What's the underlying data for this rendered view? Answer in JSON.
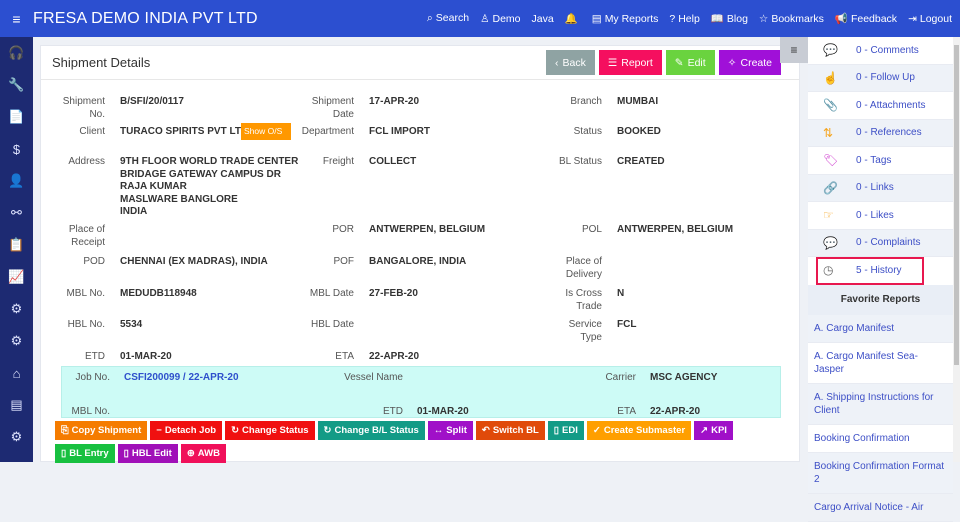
{
  "header": {
    "title": "FRESA DEMO INDIA PVT LTD",
    "nav": [
      {
        "icon": "search-icon",
        "glyph": "⌕",
        "label": "Search"
      },
      {
        "icon": "user-icon",
        "glyph": "♙",
        "label": "Demo"
      },
      {
        "icon": "",
        "glyph": "",
        "label": "Java"
      },
      {
        "icon": "bell-icon",
        "glyph": "🔔",
        "label": ""
      },
      {
        "icon": "reports-icon",
        "glyph": "▤",
        "label": "My Reports"
      },
      {
        "icon": "help-icon",
        "glyph": "?",
        "label": "Help"
      },
      {
        "icon": "book-icon",
        "glyph": "📖",
        "label": "Blog"
      },
      {
        "icon": "star-icon",
        "glyph": "☆",
        "label": "Bookmarks"
      },
      {
        "icon": "megaphone-icon",
        "glyph": "📢",
        "label": "Feedback"
      },
      {
        "icon": "logout-icon",
        "glyph": "⇥",
        "label": "Logout"
      }
    ]
  },
  "sidebar": {
    "icons": [
      "headset-icon",
      "wrench-icon",
      "document-icon",
      "dollar-icon",
      "user-icon",
      "sitemap-icon",
      "clipboard-icon",
      "chart-icon",
      "user-gear-icon",
      "gear-icon",
      "home-icon",
      "list-icon",
      "settings-icon"
    ]
  },
  "card": {
    "title": "Shipment Details",
    "buttons": [
      {
        "label": "Back",
        "color": "#8fa3a3",
        "glyph": "‹"
      },
      {
        "label": "Report",
        "color": "#f50f5f",
        "glyph": "☰"
      },
      {
        "label": "Edit",
        "color": "#6ad33f",
        "glyph": "✎"
      },
      {
        "label": "Create",
        "color": "#a010d8",
        "glyph": "✧"
      }
    ],
    "show_os": "Show O/S",
    "fields": [
      [
        {
          "l": "Shipment No.",
          "v": "B/SFI/20/0117"
        },
        {
          "l": "Shipment Date",
          "v": "17-APR-20"
        },
        {
          "l": "Branch",
          "v": "MUMBAI"
        }
      ],
      [
        {
          "l": "Client",
          "v": "TURACO SPIRITS PVT LTD"
        },
        {
          "l": "Department",
          "v": "FCL IMPORT"
        },
        {
          "l": "Status",
          "v": "BOOKED"
        }
      ],
      [
        {
          "l": "Address",
          "v": "9TH FLOOR WORLD TRADE CENTER\nBRIDAGE GATEWAY CAMPUS DR\nRAJA KUMAR\nMASLWARE BANGLORE\nINDIA"
        },
        {
          "l": "Freight",
          "v": "COLLECT"
        },
        {
          "l": "BL Status",
          "v": "CREATED"
        }
      ],
      [
        {
          "l": "Place of Receipt",
          "v": ""
        },
        {
          "l": "POR",
          "v": "ANTWERPEN, BELGIUM"
        },
        {
          "l": "POL",
          "v": "ANTWERPEN, BELGIUM"
        }
      ],
      [
        {
          "l": "POD",
          "v": "CHENNAI (EX MADRAS), INDIA"
        },
        {
          "l": "POF",
          "v": "BANGALORE, INDIA"
        },
        {
          "l": "Place of Delivery",
          "v": ""
        }
      ],
      [
        {
          "l": "MBL No.",
          "v": "MEDUDB118948"
        },
        {
          "l": "MBL Date",
          "v": "27-FEB-20"
        },
        {
          "l": "Is Cross Trade",
          "v": "N"
        }
      ],
      [
        {
          "l": "HBL No.",
          "v": "5534"
        },
        {
          "l": "HBL Date",
          "v": ""
        },
        {
          "l": "Service Type",
          "v": "FCL"
        }
      ],
      [
        {
          "l": "ETD",
          "v": "01-MAR-20"
        },
        {
          "l": "ETA",
          "v": "22-APR-20"
        },
        {
          "l": "",
          "v": ""
        }
      ]
    ],
    "job": [
      [
        {
          "l": "Job No.",
          "v": "CSFI200099 / 22-APR-20",
          "link": true
        },
        {
          "l": "Vessel Name",
          "v": ""
        },
        {
          "l": "Carrier",
          "v": "MSC AGENCY"
        }
      ],
      [
        {
          "l": "MBL No.",
          "v": ""
        },
        {
          "l": "ETD",
          "v": "01-MAR-20"
        },
        {
          "l": "ETA",
          "v": "22-APR-20"
        }
      ]
    ],
    "actions": [
      {
        "label": "Copy Shipment",
        "color": "#f57c00",
        "glyph": "⎘"
      },
      {
        "label": "Detach Job",
        "color": "#f01010",
        "glyph": "−"
      },
      {
        "label": "Change Status",
        "color": "#f01010",
        "glyph": "↻"
      },
      {
        "label": "Change B/L Status",
        "color": "#139b86",
        "glyph": "↻"
      },
      {
        "label": "Split",
        "color": "#a010c8",
        "glyph": "↔"
      },
      {
        "label": "Switch BL",
        "color": "#e04a0a",
        "glyph": "↶"
      },
      {
        "label": "EDI",
        "color": "#139b86",
        "glyph": "▯"
      },
      {
        "label": "Create Submaster",
        "color": "#ff9f00",
        "glyph": "✓"
      },
      {
        "label": "KPI",
        "color": "#a010c8",
        "glyph": "↗"
      },
      {
        "label": "BL Entry",
        "color": "#18c040",
        "glyph": "▯"
      },
      {
        "label": "HBL Edit",
        "color": "#a010b8",
        "glyph": "▯"
      },
      {
        "label": "AWB",
        "color": "#f0105a",
        "glyph": "⊕"
      }
    ]
  },
  "right_panel": {
    "items": [
      {
        "label": "0 - Comments",
        "icon": "comments-icon",
        "glyph": "💬",
        "color": "#1a9c2a"
      },
      {
        "label": "0 - Follow Up",
        "icon": "hand-pointer-icon",
        "glyph": "☝",
        "color": "#1ab09a"
      },
      {
        "label": "0 - Attachments",
        "icon": "paperclip-icon",
        "glyph": "📎",
        "color": "#999"
      },
      {
        "label": "0 - References",
        "icon": "retweet-icon",
        "glyph": "⇅",
        "color": "#f5a623"
      },
      {
        "label": "0 - Tags",
        "icon": "tags-icon",
        "glyph": "🏷",
        "color": "#d040d0"
      },
      {
        "label": "0 - Links",
        "icon": "link-icon",
        "glyph": "🔗",
        "color": "#f03070"
      },
      {
        "label": "0 - Likes",
        "icon": "hand-point-right-icon",
        "glyph": "☞",
        "color": "#f5a623"
      },
      {
        "label": "0 - Complaints",
        "icon": "comment-dots-icon",
        "glyph": "💬",
        "color": "#2233aa"
      },
      {
        "label": "5 - History",
        "icon": "history-icon",
        "glyph": "◷",
        "color": "#666"
      }
    ],
    "favorites_title": "Favorite Reports",
    "favorites": [
      "A. Cargo Manifest",
      "A. Cargo Manifest Sea- Jasper",
      "A. Shipping Instructions for Client",
      "Booking Confirmation",
      "Booking Confirmation Format 2",
      "Cargo Arrival Notice - Air"
    ]
  }
}
